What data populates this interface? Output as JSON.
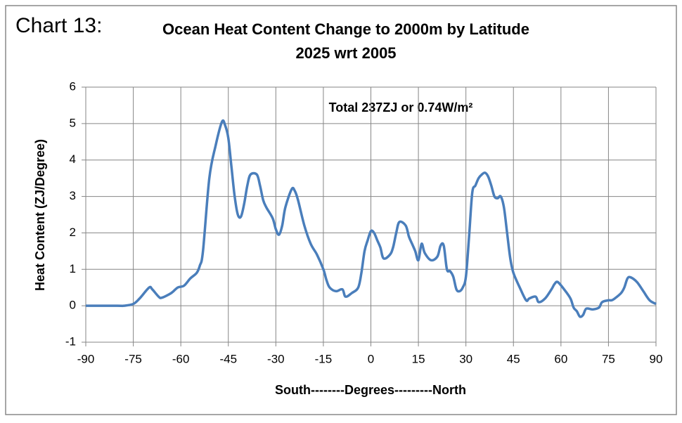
{
  "chart_data": {
    "type": "line",
    "chart_label": "Chart 13:",
    "title": "Ocean Heat Content Change to 2000m by Latitude",
    "subtitle": "2025 wrt 2005",
    "annotation": "Total 237ZJ or 0.74W/m²",
    "x_label": "South--------Degrees---------North",
    "y_label": "Heat Content (ZJ/Degree)",
    "xlim": [
      -90,
      90
    ],
    "xticks": [
      -90,
      -75,
      -60,
      -45,
      -30,
      -15,
      0,
      15,
      30,
      45,
      60,
      75,
      90
    ],
    "ylim": [
      -1,
      6
    ],
    "yticks": [
      -1,
      0,
      1,
      2,
      3,
      4,
      5,
      6
    ],
    "grid": true,
    "x": [
      -90,
      -80,
      -78,
      -75,
      -73,
      -70,
      -69,
      -67,
      -66,
      -63,
      -61,
      -59,
      -57,
      -55,
      -54,
      -53,
      -51,
      -49,
      -47,
      -46,
      -45,
      -44,
      -43,
      -42,
      -41,
      -40,
      -39,
      -38,
      -36,
      -35,
      -34,
      -33,
      -31,
      -30,
      -29,
      -28,
      -27,
      -25,
      -24,
      -23,
      -21,
      -19,
      -17,
      -15,
      -14,
      -13,
      -11,
      -9,
      -8,
      -6,
      -4,
      -3,
      -2,
      -1,
      0,
      1,
      2,
      3,
      4,
      6,
      7,
      8,
      9,
      11,
      12,
      13,
      14,
      15,
      16,
      17,
      19,
      21,
      22,
      23,
      24,
      25,
      26,
      27,
      28,
      29,
      30,
      31,
      32,
      33,
      34,
      35,
      36,
      37,
      38,
      39,
      40,
      41,
      42,
      43,
      44,
      45,
      47,
      49,
      50,
      52,
      53,
      55,
      57,
      58,
      59,
      61,
      63,
      64,
      65,
      66,
      67,
      68,
      70,
      72,
      73,
      75,
      76,
      77,
      79,
      80,
      81,
      82,
      84,
      86,
      88,
      90
    ],
    "series": [
      {
        "name": "Heat Content",
        "color": "#4a7ebb",
        "values": [
          0,
          0,
          0,
          0.05,
          0.2,
          0.5,
          0.45,
          0.25,
          0.22,
          0.35,
          0.5,
          0.55,
          0.75,
          0.9,
          1.1,
          1.5,
          3.5,
          4.4,
          5.05,
          4.95,
          4.6,
          3.8,
          3.0,
          2.5,
          2.45,
          2.8,
          3.3,
          3.6,
          3.6,
          3.3,
          2.9,
          2.7,
          2.4,
          2.1,
          1.95,
          2.2,
          2.7,
          3.2,
          3.15,
          2.9,
          2.2,
          1.7,
          1.4,
          1.0,
          0.7,
          0.5,
          0.4,
          0.45,
          0.25,
          0.35,
          0.5,
          0.9,
          1.5,
          1.8,
          2.05,
          2.0,
          1.8,
          1.6,
          1.3,
          1.4,
          1.6,
          2.0,
          2.3,
          2.2,
          1.9,
          1.7,
          1.5,
          1.25,
          1.7,
          1.45,
          1.25,
          1.35,
          1.65,
          1.65,
          1.0,
          0.95,
          0.8,
          0.45,
          0.4,
          0.5,
          0.8,
          1.9,
          3.1,
          3.3,
          3.5,
          3.6,
          3.65,
          3.55,
          3.3,
          3.0,
          2.95,
          3.0,
          2.7,
          2.0,
          1.3,
          0.9,
          0.5,
          0.15,
          0.2,
          0.25,
          0.1,
          0.2,
          0.45,
          0.6,
          0.65,
          0.45,
          0.2,
          -0.05,
          -0.15,
          -0.3,
          -0.25,
          -0.08,
          -0.1,
          -0.05,
          0.1,
          0.15,
          0.15,
          0.2,
          0.35,
          0.5,
          0.75,
          0.78,
          0.65,
          0.4,
          0.15,
          0.05
        ]
      }
    ]
  }
}
